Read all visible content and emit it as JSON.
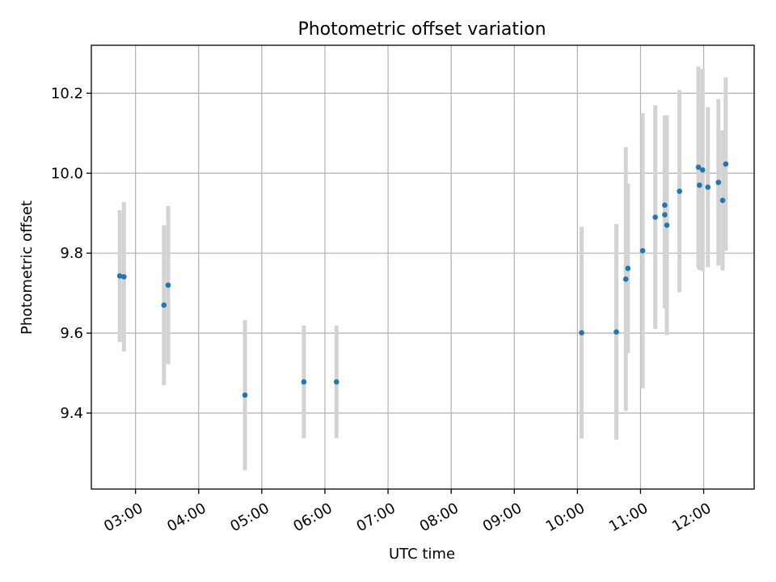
{
  "chart_data": {
    "type": "scatter",
    "title": "Photometric offset variation",
    "xlabel": "UTC time",
    "ylabel": "Photometric offset",
    "x_axis_type": "time",
    "xlim": [
      "02:18",
      "12:48"
    ],
    "ylim": [
      9.21,
      10.32
    ],
    "grid": true,
    "x_ticks": [
      "03:00",
      "04:00",
      "05:00",
      "06:00",
      "07:00",
      "08:00",
      "09:00",
      "10:00",
      "11:00",
      "12:00"
    ],
    "y_ticks": [
      9.4,
      9.6,
      9.8,
      10.0,
      10.2
    ],
    "y_tick_labels": [
      "9.4",
      "9.6",
      "9.8",
      "10.0",
      "10.2"
    ],
    "point_color": "#1f77b4",
    "errorbar_color": "#d3d3d3",
    "points": [
      {
        "x": "02:45",
        "y": 9.743,
        "err": 0.165
      },
      {
        "x": "02:49",
        "y": 9.741,
        "err": 0.187
      },
      {
        "x": "03:27",
        "y": 9.67,
        "err": 0.2
      },
      {
        "x": "03:31",
        "y": 9.72,
        "err": 0.198
      },
      {
        "x": "04:44",
        "y": 9.445,
        "err": 0.188
      },
      {
        "x": "05:40",
        "y": 9.478,
        "err": 0.141
      },
      {
        "x": "06:11",
        "y": 9.478,
        "err": 0.141
      },
      {
        "x": "10:04",
        "y": 9.601,
        "err": 0.265
      },
      {
        "x": "10:37",
        "y": 9.603,
        "err": 0.27
      },
      {
        "x": "10:46",
        "y": 9.735,
        "err": 0.33
      },
      {
        "x": "10:48",
        "y": 9.762,
        "err": 0.212
      },
      {
        "x": "11:02",
        "y": 9.806,
        "err": 0.344
      },
      {
        "x": "11:14",
        "y": 9.89,
        "err": 0.28
      },
      {
        "x": "11:23",
        "y": 9.92,
        "err": 0.224
      },
      {
        "x": "11:23",
        "y": 9.896,
        "err": 0.234
      },
      {
        "x": "11:25",
        "y": 9.87,
        "err": 0.275
      },
      {
        "x": "11:37",
        "y": 9.955,
        "err": 0.253
      },
      {
        "x": "11:55",
        "y": 10.015,
        "err": 0.252
      },
      {
        "x": "11:56",
        "y": 9.97,
        "err": 0.212
      },
      {
        "x": "11:59",
        "y": 10.008,
        "err": 0.253
      },
      {
        "x": "12:04",
        "y": 9.965,
        "err": 0.2
      },
      {
        "x": "12:14",
        "y": 9.977,
        "err": 0.208
      },
      {
        "x": "12:18",
        "y": 9.932,
        "err": 0.175
      },
      {
        "x": "12:21",
        "y": 10.023,
        "err": 0.217
      }
    ]
  }
}
